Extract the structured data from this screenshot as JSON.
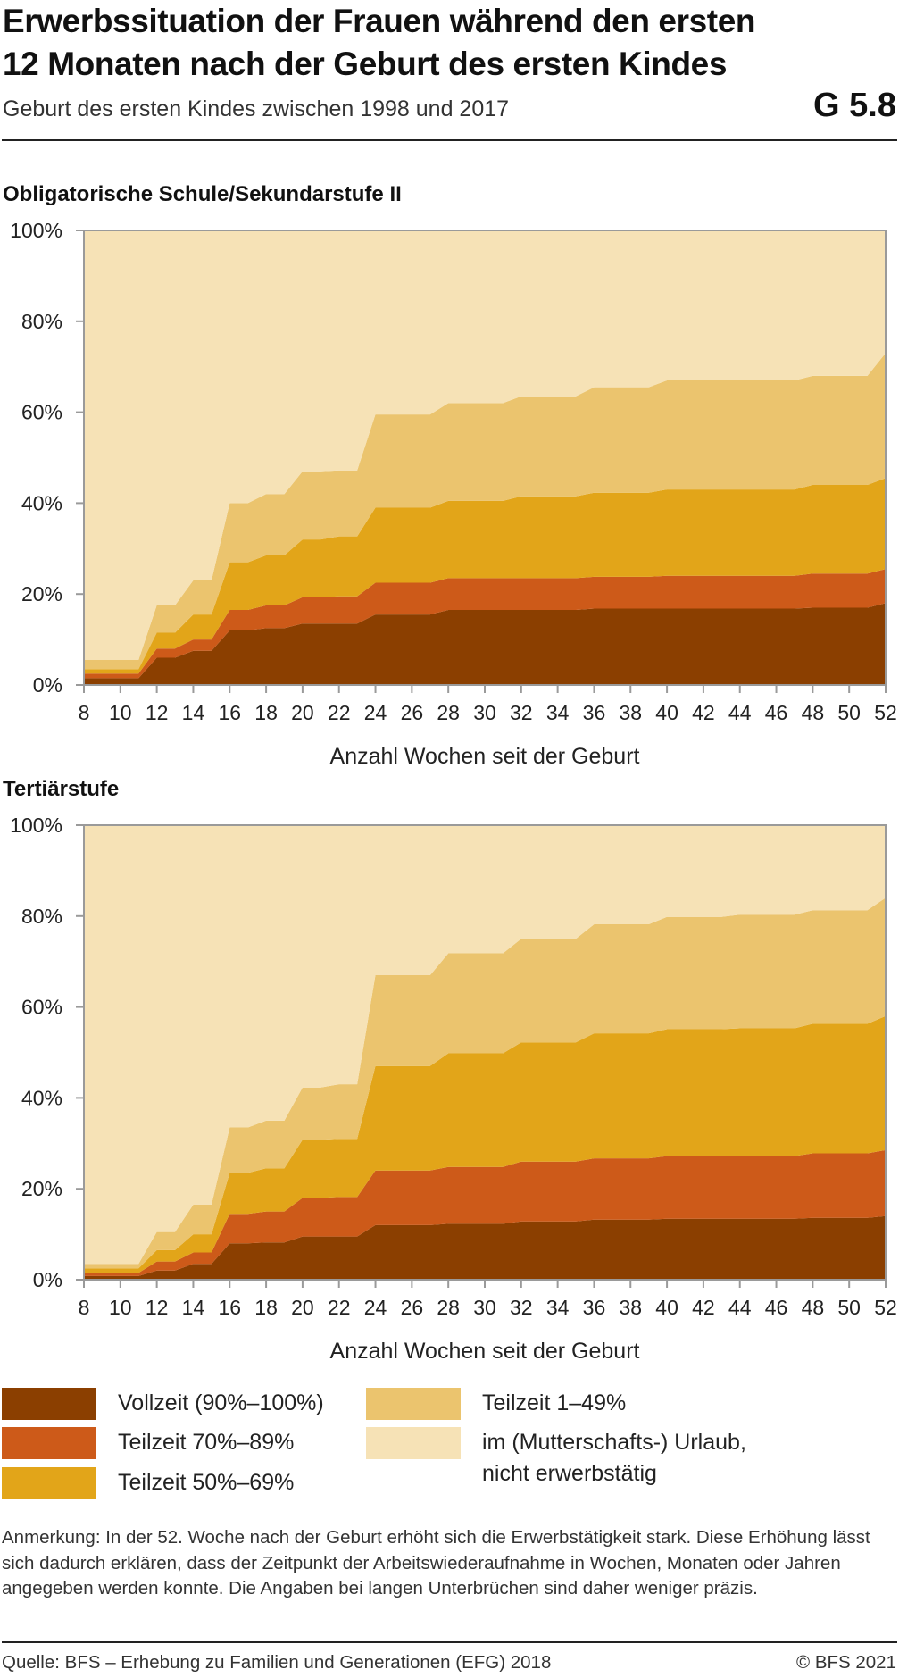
{
  "header": {
    "title_line1": "Erwerbssituation der Frauen während den ersten",
    "title_line2": "12 Monaten nach der Geburt des ersten Kindes",
    "subtitle": "Geburt des ersten Kindes zwischen 1998 und 2017",
    "code": "G 5.8"
  },
  "colors": {
    "vollzeit": "#8b3f00",
    "teilzeit_70_89": "#cd5a19",
    "teilzeit_50_69": "#e2a519",
    "teilzeit_1_49": "#ebc46e",
    "urlaub": "#f6e2b6",
    "axis": "#9a9a9a"
  },
  "chart_data": [
    {
      "type": "area",
      "stacked": true,
      "title": "Obligatorische Schule/Sekundarstufe II",
      "xlabel": "Anzahl Wochen seit der Geburt",
      "ylabel": "",
      "x": [
        8,
        9,
        10,
        11,
        12,
        13,
        14,
        15,
        16,
        17,
        18,
        19,
        20,
        21,
        22,
        23,
        24,
        25,
        26,
        27,
        28,
        29,
        30,
        31,
        32,
        33,
        34,
        35,
        36,
        37,
        38,
        39,
        40,
        41,
        42,
        43,
        44,
        45,
        46,
        47,
        48,
        49,
        50,
        51,
        52
      ],
      "ylim": [
        0,
        100
      ],
      "y_unit": "%",
      "xticks": [
        "8",
        "10",
        "12",
        "14",
        "16",
        "18",
        "20",
        "22",
        "24",
        "26",
        "28",
        "30",
        "32",
        "34",
        "36",
        "38",
        "40",
        "42",
        "44",
        "46",
        "48",
        "50",
        "52"
      ],
      "yticks": [
        "0%",
        "20%",
        "40%",
        "60%",
        "80%",
        "100%"
      ],
      "series": [
        {
          "name": "Vollzeit (90%–100%)",
          "color_key": "vollzeit",
          "values": [
            1.5,
            1.5,
            1.5,
            1.5,
            6,
            6,
            7.5,
            7.5,
            12,
            12,
            12.5,
            12.5,
            13.5,
            13.5,
            13.5,
            13.5,
            15.5,
            15.5,
            15.5,
            15.5,
            16.5,
            16.5,
            16.5,
            16.5,
            16.5,
            16.5,
            16.5,
            16.5,
            16.8,
            16.8,
            16.8,
            16.8,
            16.8,
            16.8,
            16.8,
            16.8,
            16.8,
            16.8,
            16.8,
            16.8,
            17,
            17,
            17,
            17,
            18
          ]
        },
        {
          "name": "Teilzeit 70%–89%",
          "color_key": "teilzeit_70_89",
          "values": [
            1,
            1,
            1,
            1,
            2,
            2,
            2.5,
            2.5,
            4.5,
            4.5,
            5,
            5,
            5.8,
            5.8,
            6,
            6,
            7,
            7,
            7,
            7,
            7,
            7,
            7,
            7,
            7,
            7,
            7,
            7,
            7,
            7,
            7,
            7,
            7.2,
            7.2,
            7.2,
            7.2,
            7.2,
            7.2,
            7.2,
            7.2,
            7.5,
            7.5,
            7.5,
            7.5,
            7.5
          ]
        },
        {
          "name": "Teilzeit 50%–69%",
          "color_key": "teilzeit_50_69",
          "values": [
            1,
            1,
            1,
            1,
            3.5,
            3.5,
            5.5,
            5.5,
            10.5,
            10.5,
            11,
            11,
            12.7,
            12.7,
            13.2,
            13.2,
            16.5,
            16.5,
            16.5,
            16.5,
            17,
            17,
            17,
            17,
            18,
            18,
            18,
            18,
            18.5,
            18.5,
            18.5,
            18.5,
            19,
            19,
            19,
            19,
            19,
            19,
            19,
            19,
            19.5,
            19.5,
            19.5,
            19.5,
            20
          ]
        },
        {
          "name": "Teilzeit 1–49%",
          "color_key": "teilzeit_1_49",
          "values": [
            2,
            2,
            2,
            2,
            6,
            6,
            7.5,
            7.5,
            13,
            13,
            13.5,
            13.5,
            15,
            15,
            14.5,
            14.5,
            20.5,
            20.5,
            20.5,
            20.5,
            21.5,
            21.5,
            21.5,
            21.5,
            22,
            22,
            22,
            22,
            23.2,
            23.2,
            23.2,
            23.2,
            24,
            24,
            24,
            24,
            24,
            24,
            24,
            24,
            24,
            24,
            24,
            24,
            27.5
          ]
        },
        {
          "name": "im (Mutterschafts-) Urlaub, nicht erwerbstätig",
          "color_key": "urlaub",
          "values": [
            94.5,
            94.5,
            94.5,
            94.5,
            82.5,
            82.5,
            77,
            77,
            60,
            60,
            58,
            58,
            53,
            53,
            52.8,
            52.8,
            40.5,
            40.5,
            40.5,
            40.5,
            38,
            38,
            38,
            38,
            36.5,
            36.5,
            36.5,
            36.5,
            34.5,
            34.5,
            34.5,
            34.5,
            33,
            33,
            33,
            33,
            33,
            33,
            33,
            33,
            32,
            32,
            32,
            32,
            27
          ]
        }
      ]
    },
    {
      "type": "area",
      "stacked": true,
      "title": "Tertiärstufe",
      "xlabel": "Anzahl Wochen seit der Geburt",
      "ylabel": "",
      "x": [
        8,
        9,
        10,
        11,
        12,
        13,
        14,
        15,
        16,
        17,
        18,
        19,
        20,
        21,
        22,
        23,
        24,
        25,
        26,
        27,
        28,
        29,
        30,
        31,
        32,
        33,
        34,
        35,
        36,
        37,
        38,
        39,
        40,
        41,
        42,
        43,
        44,
        45,
        46,
        47,
        48,
        49,
        50,
        51,
        52
      ],
      "ylim": [
        0,
        100
      ],
      "y_unit": "%",
      "xticks": [
        "8",
        "10",
        "12",
        "14",
        "16",
        "18",
        "20",
        "22",
        "24",
        "26",
        "28",
        "30",
        "32",
        "34",
        "36",
        "38",
        "40",
        "42",
        "44",
        "46",
        "48",
        "50",
        "52"
      ],
      "yticks": [
        "0%",
        "20%",
        "40%",
        "60%",
        "80%",
        "100%"
      ],
      "series": [
        {
          "name": "Vollzeit (90%–100%)",
          "color_key": "vollzeit",
          "values": [
            0.8,
            0.8,
            0.8,
            0.8,
            2,
            2,
            3.5,
            3.5,
            8,
            8,
            8.2,
            8.2,
            9.5,
            9.5,
            9.5,
            9.5,
            12,
            12,
            12,
            12,
            12.3,
            12.3,
            12.3,
            12.3,
            12.8,
            12.8,
            12.8,
            12.8,
            13.2,
            13.2,
            13.2,
            13.2,
            13.4,
            13.4,
            13.4,
            13.4,
            13.4,
            13.4,
            13.4,
            13.4,
            13.6,
            13.6,
            13.6,
            13.6,
            14
          ]
        },
        {
          "name": "Teilzeit 70%–89%",
          "color_key": "teilzeit_70_89",
          "values": [
            0.7,
            0.7,
            0.7,
            0.7,
            2,
            2,
            2.5,
            2.5,
            6.5,
            6.5,
            6.8,
            6.8,
            8.5,
            8.5,
            8.7,
            8.7,
            12,
            12,
            12,
            12,
            12.5,
            12.5,
            12.5,
            12.5,
            13.2,
            13.2,
            13.2,
            13.2,
            13.5,
            13.5,
            13.5,
            13.5,
            13.8,
            13.8,
            13.8,
            13.8,
            13.8,
            13.8,
            13.8,
            13.8,
            14.2,
            14.2,
            14.2,
            14.2,
            14.5
          ]
        },
        {
          "name": "Teilzeit 50%–69%",
          "color_key": "teilzeit_50_69",
          "values": [
            1,
            1,
            1,
            1,
            2.5,
            2.5,
            4,
            4,
            9,
            9,
            9.5,
            9.5,
            12.8,
            12.8,
            12.8,
            12.8,
            23,
            23,
            23,
            23,
            25,
            25,
            25,
            25,
            26.2,
            26.2,
            26.2,
            26.2,
            27.5,
            27.5,
            27.5,
            27.5,
            27.9,
            27.9,
            27.9,
            27.9,
            28.1,
            28.1,
            28.1,
            28.1,
            28.5,
            28.5,
            28.5,
            28.5,
            29.5
          ]
        },
        {
          "name": "Teilzeit 1–49%",
          "color_key": "teilzeit_1_49",
          "values": [
            1,
            1,
            1,
            1,
            4,
            4,
            6.5,
            6.5,
            10,
            10,
            10.5,
            10.5,
            11.5,
            11.5,
            12,
            12,
            20,
            20,
            20,
            20,
            22,
            22,
            22,
            22,
            22.8,
            22.8,
            22.8,
            22.8,
            24,
            24,
            24,
            24,
            24.7,
            24.7,
            24.7,
            24.7,
            25,
            25,
            25,
            25,
            25,
            25,
            25,
            25,
            26
          ]
        },
        {
          "name": "im (Mutterschafts-) Urlaub, nicht erwerbstätig",
          "color_key": "urlaub",
          "values": [
            96.5,
            96.5,
            96.5,
            96.5,
            89.5,
            89.5,
            83.5,
            83.5,
            66.5,
            66.5,
            65,
            65,
            57.7,
            57.7,
            57,
            57,
            33,
            33,
            33,
            33,
            28.2,
            28.2,
            28.2,
            28.2,
            25,
            25,
            25,
            25,
            21.8,
            21.8,
            21.8,
            21.8,
            20.2,
            20.2,
            20.2,
            20.2,
            19.7,
            19.7,
            19.7,
            19.7,
            18.7,
            18.7,
            18.7,
            18.7,
            16
          ]
        }
      ]
    }
  ],
  "legend": [
    {
      "label": "Vollzeit (90%–100%)",
      "color_key": "vollzeit"
    },
    {
      "label": "Teilzeit 70%–89%",
      "color_key": "teilzeit_70_89"
    },
    {
      "label": "Teilzeit 50%–69%",
      "color_key": "teilzeit_50_69"
    },
    {
      "label": "Teilzeit 1–49%",
      "color_key": "teilzeit_1_49"
    },
    {
      "label_line1": "im (Mutterschafts-) Urlaub,",
      "label_line2": "nicht erwerbstätig",
      "color_key": "urlaub"
    }
  ],
  "footer": {
    "note": "Anmerkung: In der 52. Woche nach der Geburt erhöht sich die Erwerbstätigkeit stark. Diese Erhöhung lässt sich dadurch erklären, dass der Zeitpunkt der Arbeitswiederaufnahme in Wochen, Monaten oder Jahren angegeben werden konnte. Die Angaben bei langen Unterbrüchen sind daher weniger präzis.",
    "source": "Quelle: BFS – Erhebung zu Familien und Generationen (EFG) 2018",
    "copyright": "© BFS 2021"
  }
}
